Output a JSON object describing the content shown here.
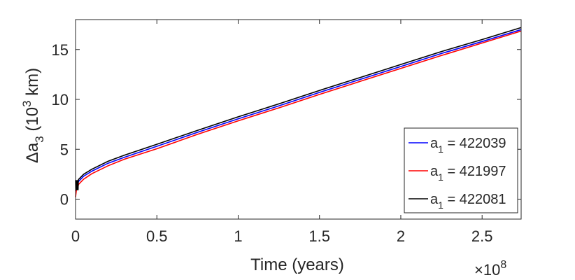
{
  "chart_data": {
    "type": "line",
    "title": "",
    "xlabel": "Time (years)",
    "x_multiplier": "×10",
    "x_multiplier_exponent": "8",
    "ylabel_main": "Δa",
    "ylabel_sub": "3",
    "ylabel_unit_open": " (10",
    "ylabel_unit_sup": "3",
    "ylabel_unit_close": " km)",
    "xlim": [
      0,
      2.74
    ],
    "ylim": [
      -2,
      18
    ],
    "x_scale_note": "x values in units of 1e8 years",
    "xticks": [
      0,
      0.5,
      1,
      1.5,
      2,
      2.5
    ],
    "xtick_labels": [
      "0",
      "0.5",
      "1",
      "1.5",
      "2",
      "2.5"
    ],
    "yticks": [
      0,
      5,
      10,
      15
    ],
    "ytick_labels": [
      "0",
      "5",
      "10",
      "15"
    ],
    "grid": false,
    "legend_position": "bottom-right",
    "series": [
      {
        "legend_main": "a",
        "legend_sub": "1",
        "legend_value": " = 422039",
        "color": "#0000ff",
        "x": [
          0,
          0.005,
          0.02,
          0.05,
          0.1,
          0.2,
          0.3,
          0.5,
          0.75,
          1.0,
          1.25,
          1.5,
          1.75,
          2.0,
          2.25,
          2.5,
          2.74
        ],
        "y": [
          0.8,
          1.3,
          1.8,
          2.3,
          2.8,
          3.6,
          4.2,
          5.3,
          6.7,
          8.05,
          9.35,
          10.7,
          12.0,
          13.3,
          14.6,
          15.8,
          17.0
        ]
      },
      {
        "legend_main": "a",
        "legend_sub": "1",
        "legend_value": " = 421997",
        "color": "#ff0000",
        "x": [
          0,
          0.005,
          0.02,
          0.05,
          0.1,
          0.2,
          0.3,
          0.5,
          0.75,
          1.0,
          1.25,
          1.5,
          1.75,
          2.0,
          2.25,
          2.5,
          2.74
        ],
        "y": [
          0.2,
          0.9,
          1.5,
          2.0,
          2.55,
          3.35,
          4.0,
          5.05,
          6.5,
          7.85,
          9.15,
          10.5,
          11.8,
          13.1,
          14.4,
          15.65,
          16.85
        ]
      },
      {
        "legend_main": "a",
        "legend_sub": "1",
        "legend_value": " = 422081",
        "color": "#000000",
        "x": [
          0,
          0.005,
          0.02,
          0.05,
          0.1,
          0.2,
          0.3,
          0.5,
          0.75,
          1.0,
          1.25,
          1.5,
          1.75,
          2.0,
          2.25,
          2.5,
          2.74
        ],
        "y": [
          1.5,
          1.6,
          2.0,
          2.5,
          3.0,
          3.8,
          4.4,
          5.5,
          6.9,
          8.25,
          9.55,
          10.9,
          12.2,
          13.5,
          14.8,
          16.0,
          17.2
        ]
      }
    ]
  }
}
